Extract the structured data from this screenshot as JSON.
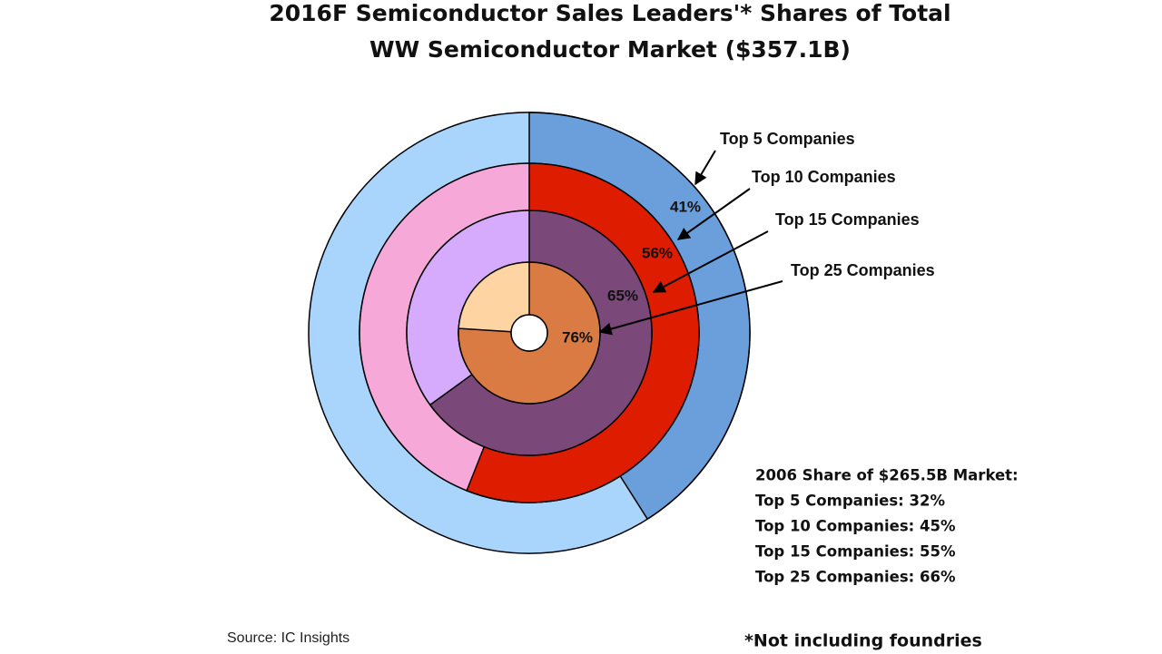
{
  "chart_data": {
    "type": "nested-donut",
    "title": "2016F Semiconductor Sales Leaders'* Shares of Total",
    "subtitle": "WW Semiconductor Market ($357.1B)",
    "series": [
      {
        "name": "Top 5 Companies",
        "values": [
          41
        ],
        "value_labels": [
          "41%"
        ],
        "color": "#6a9fdc",
        "rest_color": "#a9d4fb"
      },
      {
        "name": "Top 10 Companies",
        "values": [
          56
        ],
        "value_labels": [
          "56%"
        ],
        "color": "#dd1c00",
        "rest_color": "#f6a9d9"
      },
      {
        "name": "Top 15 Companies",
        "values": [
          65
        ],
        "value_labels": [
          "65%"
        ],
        "color": "#7a4879",
        "rest_color": "#d6abfd"
      },
      {
        "name": "Top 25 Companies",
        "values": [
          76
        ],
        "value_labels": [
          "76%"
        ],
        "color": "#d97b42",
        "rest_color": "#ffd4a3"
      }
    ],
    "comparison": {
      "title": "2006 Share of $265.5B Market:",
      "items": [
        "Top 5 Companies: 32%",
        "Top 10 Companies: 45%",
        "Top 15 Companies: 55%",
        "Top 25 Companies: 66%"
      ]
    },
    "source": "Source: IC Insights",
    "footnote": "*Not including foundries"
  }
}
